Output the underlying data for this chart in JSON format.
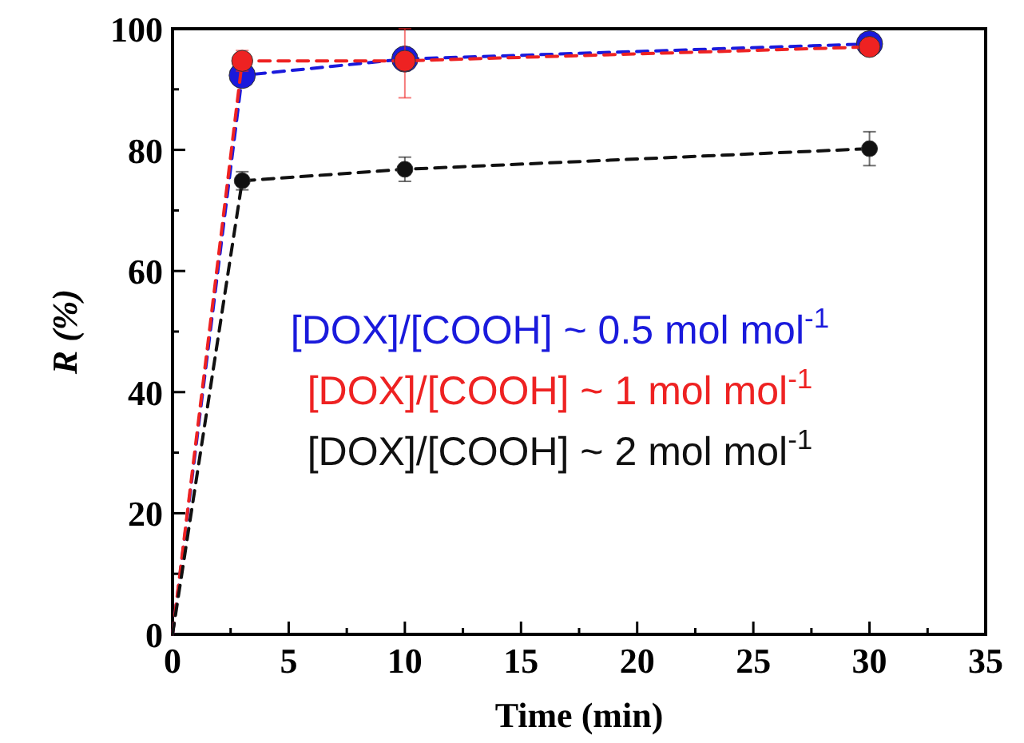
{
  "chart_data": {
    "type": "line",
    "xlabel": "Time (min)",
    "ylabel": "R (%)",
    "xlim": [
      0,
      35
    ],
    "xticks": [
      0,
      {
        "value": 2.5,
        "label": null
      },
      5,
      {
        "value": 7.5,
        "label": null
      },
      10,
      {
        "value": 12.5,
        "label": null
      },
      15,
      {
        "value": 17.5,
        "label": null
      },
      20,
      {
        "value": 22.5,
        "label": null
      },
      25,
      {
        "value": 27.5,
        "label": null
      },
      30,
      {
        "value": 32.5,
        "label": null
      },
      35
    ],
    "ylim": [
      0,
      100
    ],
    "yticks": [
      0,
      {
        "value": 10,
        "label": null
      },
      20,
      {
        "value": 30,
        "label": null
      },
      40,
      {
        "value": 50,
        "label": null
      },
      60,
      {
        "value": 70,
        "label": null
      },
      80,
      {
        "value": 90,
        "label": null
      },
      100
    ],
    "x": [
      0,
      3,
      10,
      30
    ],
    "marker": "circle",
    "line_style": "dashed",
    "grid": false,
    "legend": "center",
    "series": [
      {
        "name": "[DOX]/[COOH] ~ 0.5 mol mol$^{-1}$",
        "color": "#1a1adc",
        "values": [
          0,
          92.3,
          95,
          97.5
        ],
        "errors": [
          null,
          null,
          null,
          null
        ]
      },
      {
        "name": "[DOX]/[COOH] ~ 1 mol mol$^{-1}$",
        "color": "#ee2222",
        "values": [
          0,
          94.7,
          94.7,
          97
        ],
        "errors": [
          null,
          1.7,
          [
            88.6,
            100
          ],
          0.8
        ]
      },
      {
        "name": "[DOX]/[COOH] ~ 2 mol mol$^{-1}$",
        "color": "#111111",
        "values": [
          0,
          74.9,
          76.8,
          80.2
        ],
        "errors": [
          null,
          1.5,
          2,
          2.8
        ]
      }
    ]
  }
}
